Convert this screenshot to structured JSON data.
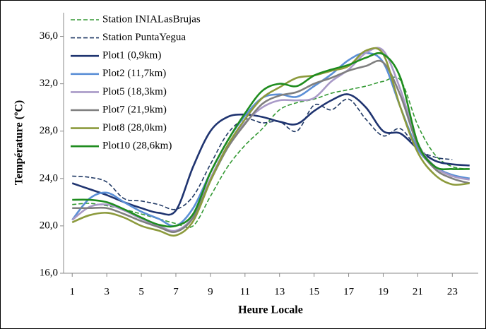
{
  "chart_data": {
    "type": "line",
    "x_label": "Heure Locale",
    "y_label": "Température (ºC)",
    "x": [
      1,
      2,
      3,
      4,
      5,
      6,
      7,
      8,
      9,
      10,
      11,
      12,
      13,
      14,
      15,
      16,
      17,
      18,
      19,
      20,
      21,
      22,
      23,
      24
    ],
    "xlim": [
      0.5,
      24.5
    ],
    "xticks": [
      1,
      3,
      5,
      7,
      9,
      11,
      13,
      15,
      17,
      19,
      21,
      23
    ],
    "ylim": [
      16,
      38
    ],
    "yticks": [
      {
        "value": 16,
        "label": "16,0"
      },
      {
        "value": 20,
        "label": "20,0"
      },
      {
        "value": 24,
        "label": "24,0"
      },
      {
        "value": 28,
        "label": "28,0"
      },
      {
        "value": 32,
        "label": "32,0"
      },
      {
        "value": 36,
        "label": "36,0"
      }
    ],
    "legend": "top-left",
    "series": [
      {
        "name": "Station INIALasBrujas",
        "color": "#339933",
        "dashed": true,
        "values": [
          21.8,
          21.9,
          21.7,
          21.4,
          21.0,
          20.6,
          20.2,
          20.0,
          22.5,
          25.0,
          26.8,
          28.2,
          29.8,
          30.4,
          30.7,
          31.2,
          31.5,
          31.8,
          32.2,
          32.3,
          28.5,
          26.0,
          25.0,
          24.8
        ]
      },
      {
        "name": "Station PuntaYegua",
        "color": "#1f3864",
        "dashed": true,
        "values": [
          24.2,
          24.1,
          23.7,
          22.3,
          22.1,
          21.8,
          21.4,
          22.5,
          25.2,
          27.8,
          29.0,
          28.7,
          28.8,
          28.0,
          30.2,
          29.8,
          30.7,
          29.0,
          27.6,
          28.2,
          26.5,
          25.8,
          25.6,
          null
        ]
      },
      {
        "name": "Plot1 (0,9km)",
        "color": "#1f3470",
        "dashed": false,
        "values": [
          23.6,
          23.1,
          22.6,
          22.0,
          21.5,
          21.1,
          21.3,
          25.0,
          28.0,
          29.2,
          29.4,
          29.2,
          28.8,
          28.6,
          29.7,
          30.6,
          31.1,
          30.0,
          28.0,
          27.8,
          26.5,
          25.5,
          25.2,
          25.1
        ]
      },
      {
        "name": "Plot2 (11,7km)",
        "color": "#5b8fd6",
        "dashed": false,
        "values": [
          20.5,
          22.3,
          22.8,
          22.0,
          21.2,
          20.6,
          20.0,
          21.5,
          24.5,
          27.2,
          29.3,
          30.8,
          31.1,
          30.9,
          31.8,
          32.8,
          34.0,
          34.6,
          33.8,
          30.0,
          26.5,
          25.0,
          24.3,
          24.0
        ]
      },
      {
        "name": "Plot5 (18,3km)",
        "color": "#a899c7",
        "dashed": false,
        "values": [
          20.5,
          21.6,
          21.8,
          21.3,
          20.6,
          20.0,
          19.6,
          20.8,
          24.0,
          26.8,
          28.7,
          30.0,
          30.6,
          30.6,
          30.8,
          32.2,
          33.2,
          34.6,
          34.8,
          31.5,
          27.0,
          25.0,
          24.2,
          23.9
        ]
      },
      {
        "name": "Plot7 (21,9km)",
        "color": "#7f7f7f",
        "dashed": false,
        "values": [
          21.5,
          21.5,
          21.5,
          21.0,
          20.4,
          19.9,
          19.5,
          20.7,
          23.8,
          26.6,
          28.6,
          30.3,
          31.0,
          31.3,
          32.0,
          32.5,
          33.1,
          33.5,
          33.8,
          31.0,
          26.8,
          24.8,
          24.0,
          23.6
        ]
      },
      {
        "name": "Plot8 (28,0km)",
        "color": "#8c9a3c",
        "dashed": false,
        "values": [
          20.3,
          20.9,
          21.1,
          20.7,
          20.0,
          19.6,
          19.2,
          20.4,
          23.8,
          26.8,
          29.0,
          30.8,
          31.7,
          32.5,
          32.7,
          33.1,
          33.5,
          34.8,
          34.5,
          30.0,
          26.2,
          24.3,
          23.5,
          23.6
        ]
      },
      {
        "name": "Plot10 (28,6km)",
        "color": "#1e8c1e",
        "dashed": false,
        "values": [
          22.2,
          22.2,
          22.0,
          21.4,
          20.7,
          20.1,
          20.0,
          21.0,
          24.5,
          27.2,
          29.5,
          31.4,
          32.0,
          31.8,
          32.7,
          33.2,
          33.6,
          34.2,
          34.5,
          32.5,
          27.0,
          25.0,
          24.8,
          24.8
        ]
      }
    ]
  }
}
